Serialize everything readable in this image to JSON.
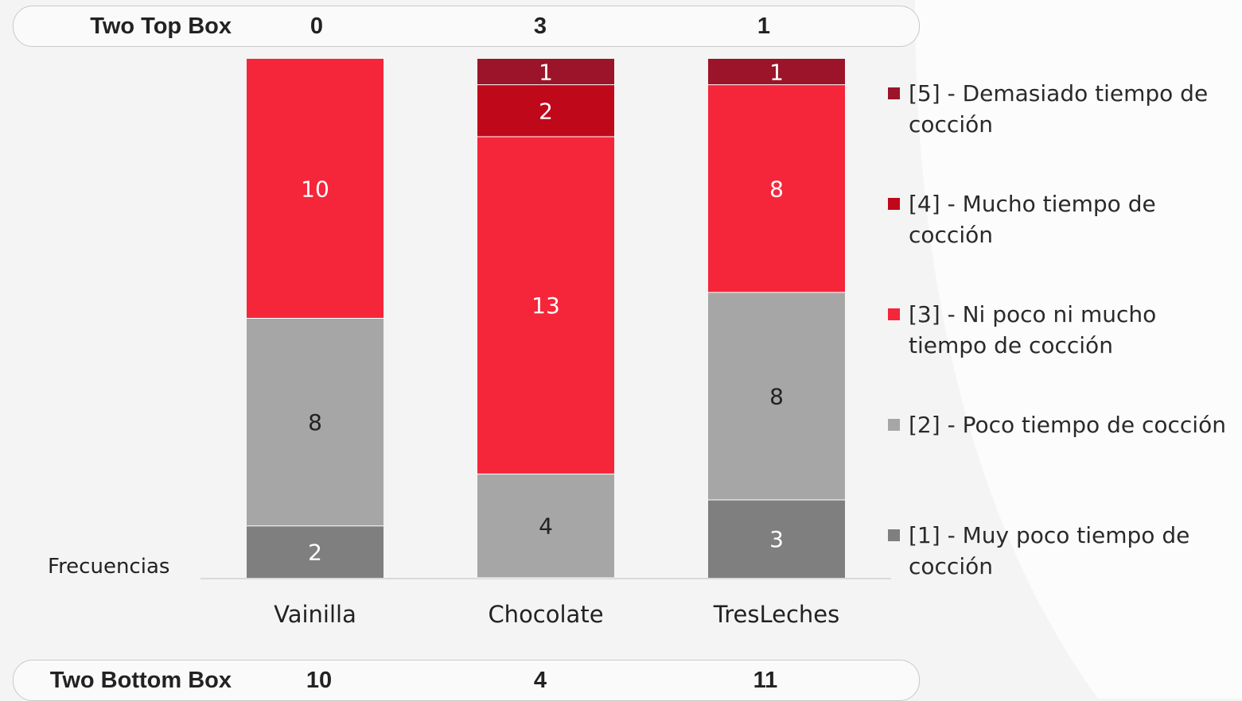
{
  "top_box": {
    "label": "Two Top Box",
    "values": [
      "0",
      "3",
      "1"
    ]
  },
  "bottom_box": {
    "label": "Two Bottom  Box",
    "values": [
      "10",
      "4",
      "11"
    ]
  },
  "chart_data": {
    "type": "bar",
    "stacked": true,
    "categories": [
      "Vainilla",
      "Chocolate",
      "TresLeches"
    ],
    "ylabel": "Frecuencias",
    "series": [
      {
        "name": "[1] - Muy poco tiempo de cocción",
        "color": "#7f7f7f",
        "label_color": "#ffffff",
        "values": [
          2,
          null,
          3
        ]
      },
      {
        "name": "[2] - Poco tiempo de cocción",
        "color": "#a6a6a6",
        "label_color": "#222222",
        "values": [
          8,
          4,
          8
        ]
      },
      {
        "name": "[3] - Ni poco ni mucho tiempo de cocción",
        "color": "#f5263a",
        "label_color": "#ffffff",
        "values": [
          10,
          13,
          8
        ]
      },
      {
        "name": "[4] - Mucho tiempo de cocción",
        "color": "#c0081b",
        "label_color": "#ffffff",
        "values": [
          null,
          2,
          null
        ]
      },
      {
        "name": "[5] - Demasiado tiempo de cocción",
        "color": "#9b1429",
        "label_color": "#ffffff",
        "values": [
          null,
          1,
          1
        ]
      }
    ],
    "legend_position": "right",
    "grid": false
  }
}
